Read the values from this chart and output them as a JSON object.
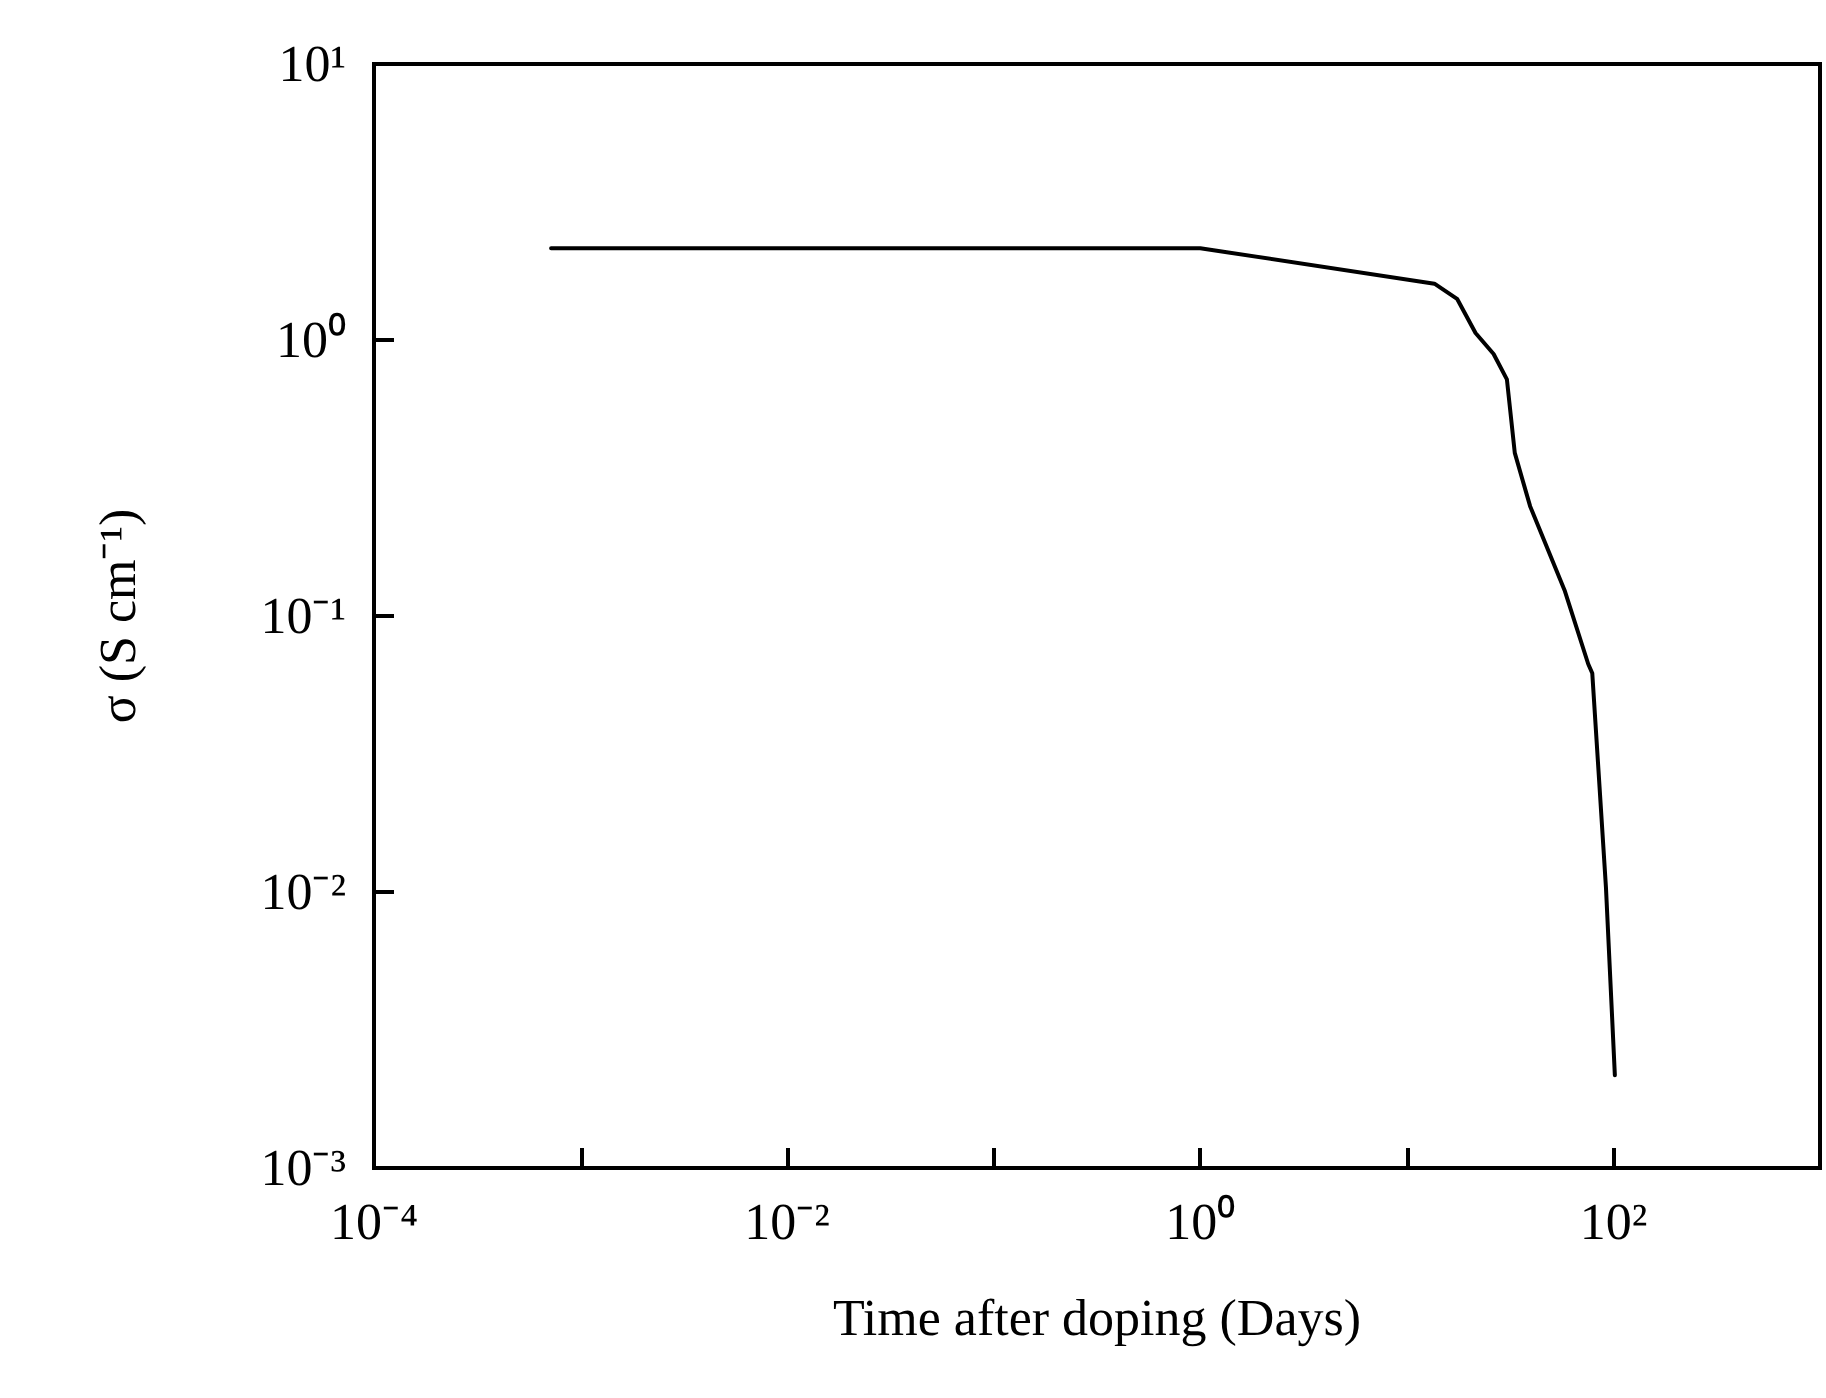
{
  "chart_data": {
    "type": "line",
    "xlabel": "Time after doping (Days)",
    "ylabel": "σ (S cm⁻¹)",
    "log": "xy",
    "grid": false,
    "marker": "none",
    "line_style": "solid",
    "xlim": [
      0.0001,
      1000
    ],
    "xticks": [
      {
        "value": 0.0001,
        "label": "10⁻⁴"
      },
      {
        "value": 0.001,
        "label": null
      },
      {
        "value": 0.01,
        "label": "10⁻²"
      },
      {
        "value": 0.1,
        "label": null
      },
      {
        "value": 1,
        "label": "10⁰"
      },
      {
        "value": 10,
        "label": null
      },
      {
        "value": 100,
        "label": "10²"
      },
      {
        "value": 1000,
        "label": null
      }
    ],
    "ylim": [
      0.001,
      10
    ],
    "yticks": [
      {
        "value": 0.001,
        "label": "10⁻³"
      },
      {
        "value": 0.01,
        "label": "10⁻²"
      },
      {
        "value": 0.1,
        "label": "10⁻¹"
      },
      {
        "value": 1,
        "label": "10⁰"
      },
      {
        "value": 10,
        "label": "10¹"
      }
    ],
    "series": [
      {
        "color": "#000000",
        "x": [
          0.00072,
          1.0,
          13.6,
          17.5,
          21.5,
          26.3,
          30.5,
          33.3,
          39.5,
          58,
          75.5,
          79,
          92,
          101.6
        ],
        "values": [
          2.15,
          2.15,
          1.6,
          1.41,
          1.06,
          0.89,
          0.72,
          0.39,
          0.25,
          0.124,
          0.067,
          0.062,
          0.0104,
          0.00217
        ]
      }
    ]
  }
}
